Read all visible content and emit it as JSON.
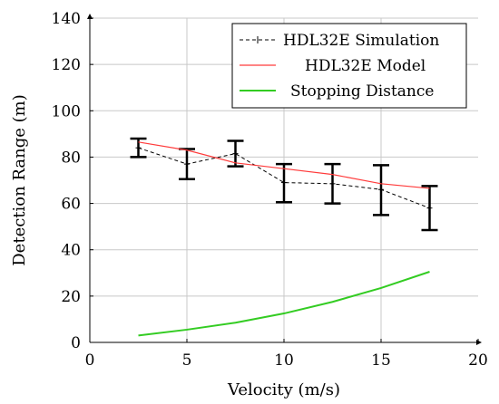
{
  "chart_data": {
    "type": "line",
    "xlabel": "Velocity (m/s)",
    "ylabel": "Detection Range (m)",
    "xlim": [
      0,
      20
    ],
    "ylim": [
      0,
      140
    ],
    "xticks": [
      0,
      5,
      10,
      15,
      20
    ],
    "yticks": [
      0,
      20,
      40,
      60,
      80,
      100,
      120,
      140
    ],
    "grid": true,
    "legend_position": "top-right",
    "series": [
      {
        "name": "HDL32E Simulation",
        "style": "dashed",
        "color": "#000000",
        "x": [
          2.5,
          5,
          7.5,
          10,
          12.5,
          15,
          17.5
        ],
        "y": [
          84,
          77,
          81.5,
          69,
          68.5,
          66,
          58
        ],
        "err_low": [
          80,
          70.5,
          76,
          60.5,
          60,
          55,
          48.5
        ],
        "err_high": [
          88,
          83.5,
          87,
          77,
          77,
          76.5,
          67.5
        ]
      },
      {
        "name": "HDL32E Model",
        "style": "solid",
        "color": "#ff3b3b",
        "x": [
          2.5,
          5,
          7.5,
          10,
          12.5,
          15,
          17.5
        ],
        "y": [
          86.5,
          83,
          77.5,
          75,
          72.5,
          68.5,
          66.5
        ]
      },
      {
        "name": "Stopping Distance",
        "style": "solid",
        "color": "#33cc22",
        "x": [
          2.5,
          5,
          7.5,
          10,
          12.5,
          15,
          17.5
        ],
        "y": [
          3,
          5.5,
          8.5,
          12.5,
          17.5,
          23.5,
          30.5
        ]
      }
    ]
  }
}
